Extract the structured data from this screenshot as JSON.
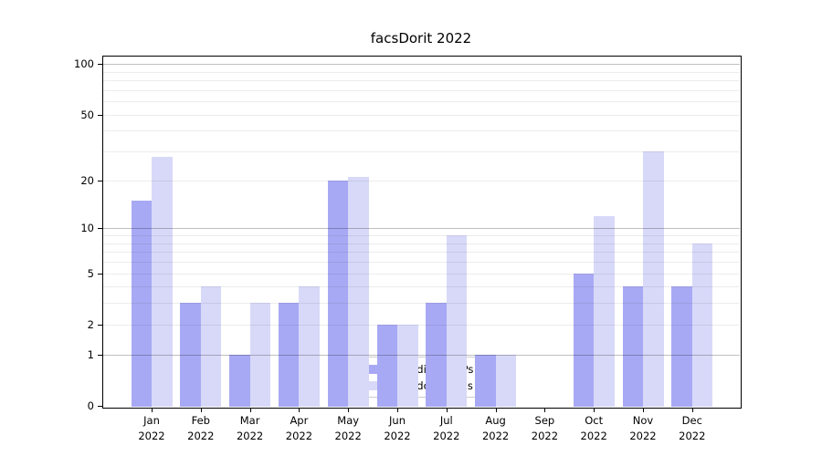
{
  "chart_data": {
    "type": "bar",
    "title": "facsDorit 2022",
    "categories": [
      "Jan",
      "Feb",
      "Mar",
      "Apr",
      "May",
      "Jun",
      "Jul",
      "Aug",
      "Sep",
      "Oct",
      "Nov",
      "Dec"
    ],
    "x_year": "2022",
    "series": [
      {
        "name": "Nb of distinct IPs",
        "color": "#a8a9f4",
        "values": [
          15,
          3,
          1,
          3,
          20,
          2,
          3,
          1,
          0,
          5,
          4,
          4
        ]
      },
      {
        "name": "Nb of downloads",
        "color": "#d8d9f8",
        "values": [
          28,
          4,
          3,
          4,
          21,
          2,
          9,
          1,
          0,
          12,
          30,
          8
        ]
      }
    ],
    "yscale": "log10(1+v)",
    "ylim": [
      0,
      112
    ],
    "y_ticks": [
      0,
      1,
      2,
      5,
      10,
      20,
      50,
      100
    ],
    "y_major_gridlines": [
      1,
      10,
      100
    ],
    "y_minor_gridlines": [
      2,
      3,
      4,
      5,
      6,
      7,
      8,
      9,
      20,
      30,
      40,
      50,
      60,
      70,
      80,
      90
    ],
    "grid": true,
    "legend_location": "lower center",
    "background_color": "#ffffff",
    "axis_color": "#000000",
    "major_grid_color": "rgba(0,0,0,0.25)",
    "minor_grid_color": "rgba(0,0,0,0.075)"
  }
}
